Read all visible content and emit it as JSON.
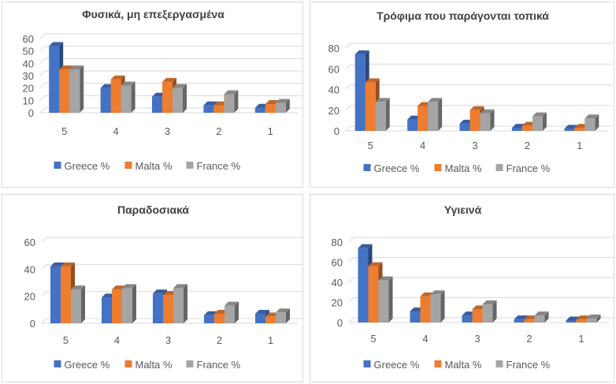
{
  "colors": {
    "greece": "#4472c4",
    "malta": "#ed7d31",
    "france": "#a5a5a5",
    "gridline": "#d9d9d9",
    "text": "#595959",
    "title": "#404040"
  },
  "chart_data": [
    {
      "type": "bar",
      "title": "Φυσικά, μη επεξεργασμένα",
      "categories": [
        "5",
        "4",
        "3",
        "2",
        "1"
      ],
      "series": [
        {
          "name": "Greece %",
          "values": [
            54,
            20,
            13,
            6,
            4
          ]
        },
        {
          "name": "Malta %",
          "values": [
            35,
            27,
            25,
            6,
            7
          ]
        },
        {
          "name": "France %",
          "values": [
            35,
            22,
            20,
            15,
            8
          ]
        }
      ],
      "yticks": [
        0,
        10,
        20,
        30,
        40,
        50,
        60
      ],
      "ylim": [
        0,
        60
      ],
      "xlabel": "",
      "ylabel": "",
      "legend": "bottom"
    },
    {
      "type": "bar",
      "title": "Τρόφιμα που παράγονται τοπικά",
      "categories": [
        "5",
        "4",
        "3",
        "2",
        "1"
      ],
      "series": [
        {
          "name": "Greece %",
          "values": [
            74,
            11,
            7,
            3,
            2
          ]
        },
        {
          "name": "Malta %",
          "values": [
            47,
            24,
            20,
            5,
            3
          ]
        },
        {
          "name": "France %",
          "values": [
            28,
            28,
            17,
            14,
            12
          ]
        }
      ],
      "yticks": [
        0,
        20,
        40,
        60,
        80
      ],
      "ylim": [
        0,
        80
      ],
      "xlabel": "",
      "ylabel": "",
      "legend": "bottom"
    },
    {
      "type": "bar",
      "title": "Παραδοσιακά",
      "categories": [
        "5",
        "4",
        "3",
        "2",
        "1"
      ],
      "series": [
        {
          "name": "Greece %",
          "values": [
            42,
            19,
            22,
            6,
            7
          ]
        },
        {
          "name": "Malta %",
          "values": [
            42,
            25,
            21,
            7,
            5
          ]
        },
        {
          "name": "France %",
          "values": [
            25,
            26,
            26,
            13,
            8
          ]
        }
      ],
      "yticks": [
        0,
        20,
        40,
        60
      ],
      "ylim": [
        0,
        60
      ],
      "xlabel": "",
      "ylabel": "",
      "legend": "bottom"
    },
    {
      "type": "bar",
      "title": "Υγιεινά",
      "categories": [
        "5",
        "4",
        "3",
        "2",
        "1"
      ],
      "series": [
        {
          "name": "Greece %",
          "values": [
            74,
            11,
            7,
            3,
            2
          ]
        },
        {
          "name": "Malta %",
          "values": [
            56,
            26,
            13,
            3,
            3
          ]
        },
        {
          "name": "France %",
          "values": [
            42,
            28,
            18,
            7,
            4
          ]
        }
      ],
      "yticks": [
        0,
        20,
        40,
        60,
        80
      ],
      "ylim": [
        0,
        80
      ],
      "xlabel": "",
      "ylabel": "",
      "legend": "bottom"
    }
  ]
}
